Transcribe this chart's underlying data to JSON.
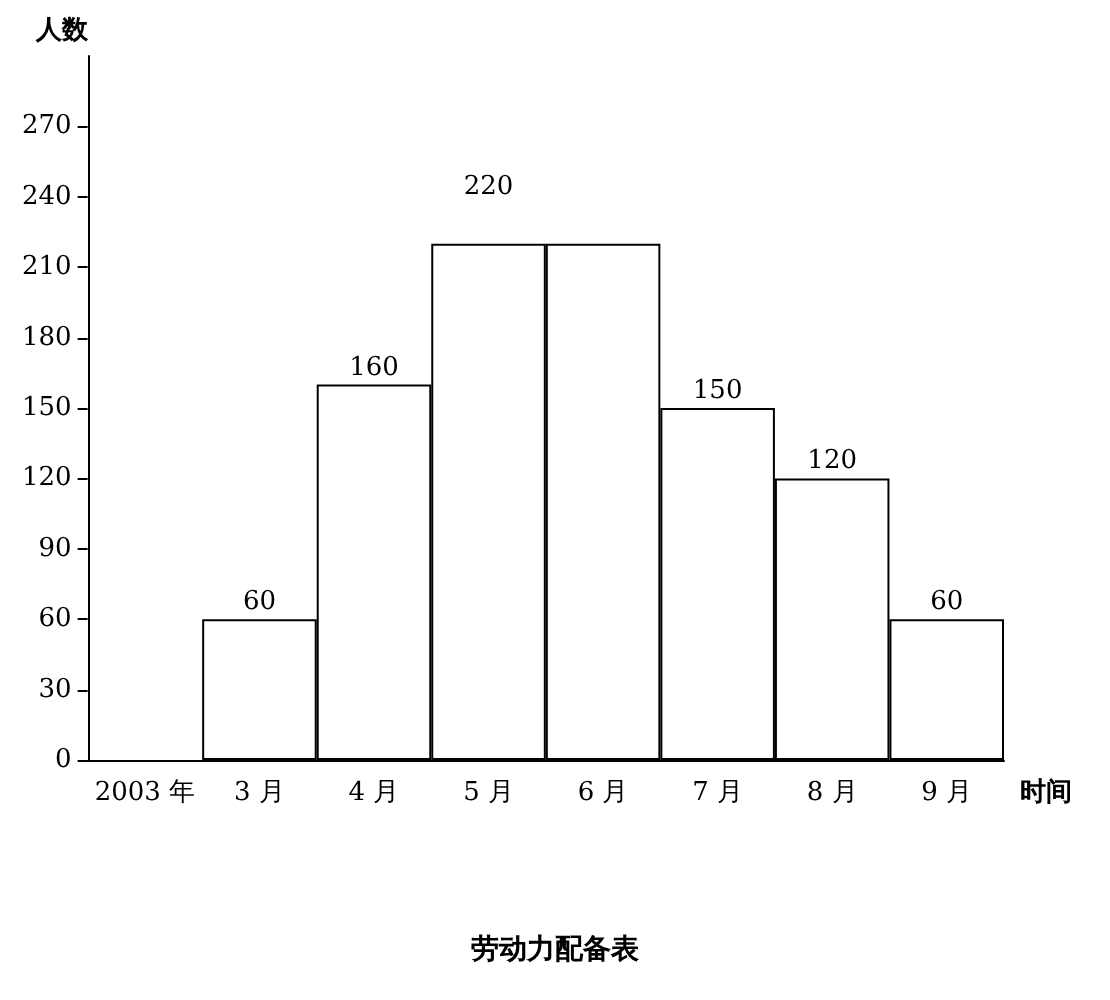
{
  "chart_data": {
    "type": "bar",
    "title": "劳动力配备表",
    "xlabel": "时间",
    "ylabel": "人数",
    "categories": [
      "2003 年",
      "3 月",
      "4 月",
      "5 月",
      "6 月",
      "7 月",
      "8 月",
      "9 月"
    ],
    "values": [
      null,
      60,
      160,
      220,
      220,
      150,
      120,
      60
    ],
    "value_labels": [
      null,
      "60",
      "160",
      "220",
      null,
      "150",
      "120",
      "60"
    ],
    "color": "#ffffff",
    "ylim": [
      0,
      300
    ],
    "yticks": [
      0,
      30,
      60,
      90,
      120,
      150,
      180,
      210,
      240,
      270
    ],
    "grid": false
  }
}
